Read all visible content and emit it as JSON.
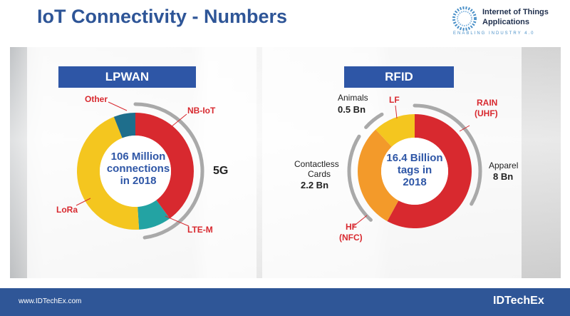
{
  "title": "IoT Connectivity - Numbers",
  "logo": {
    "line1": "Internet of Things",
    "line2": "Applications",
    "tagline": "ENABLING INDUSTRY 4.0"
  },
  "lpwan": {
    "header": "LPWAN",
    "center_line1": "106 Million",
    "center_line2": "connections",
    "center_line3": "in 2018",
    "labels": {
      "other": "Other",
      "nb_iot": "NB-IoT",
      "five_g": "5G",
      "lte_m": "LTE-M",
      "lora": "LoRa"
    },
    "colors": {
      "nb_iot": "#d8292f",
      "lte_m": "#23a3a3",
      "lora": "#f4c61f",
      "other": "#1e6e8c"
    },
    "chart_data": {
      "type": "pie",
      "donut": true,
      "categories": [
        "NB-IoT",
        "LTE-M",
        "LoRa",
        "Other"
      ],
      "values": [
        40,
        9,
        45,
        6
      ]
    }
  },
  "rfid": {
    "header": "RFID",
    "center_line1": "16.4 Billion",
    "center_line2": "tags in",
    "center_line3": "2018",
    "labels": {
      "animals": "Animals",
      "animals_value": "0.5 Bn",
      "lf": "LF",
      "rain_1": "RAIN",
      "rain_2": "(UHF)",
      "apparel": "Apparel",
      "apparel_value": "8 Bn",
      "contactless_1": "Contactless",
      "contactless_2": "Cards",
      "contactless_value": "2.2 Bn",
      "hf_1": "HF",
      "hf_2": "(NFC)"
    },
    "colors": {
      "rain": "#d8292f",
      "hf": "#f39a2a",
      "lf": "#f4c61f"
    },
    "chart_data": {
      "type": "pie",
      "donut": true,
      "categories": [
        "RAIN (UHF)",
        "HF (NFC)",
        "LF"
      ],
      "values": [
        58,
        30,
        12
      ]
    }
  },
  "footer": {
    "url": "www.IDTechEx.com",
    "brand": "IDTechEx"
  }
}
